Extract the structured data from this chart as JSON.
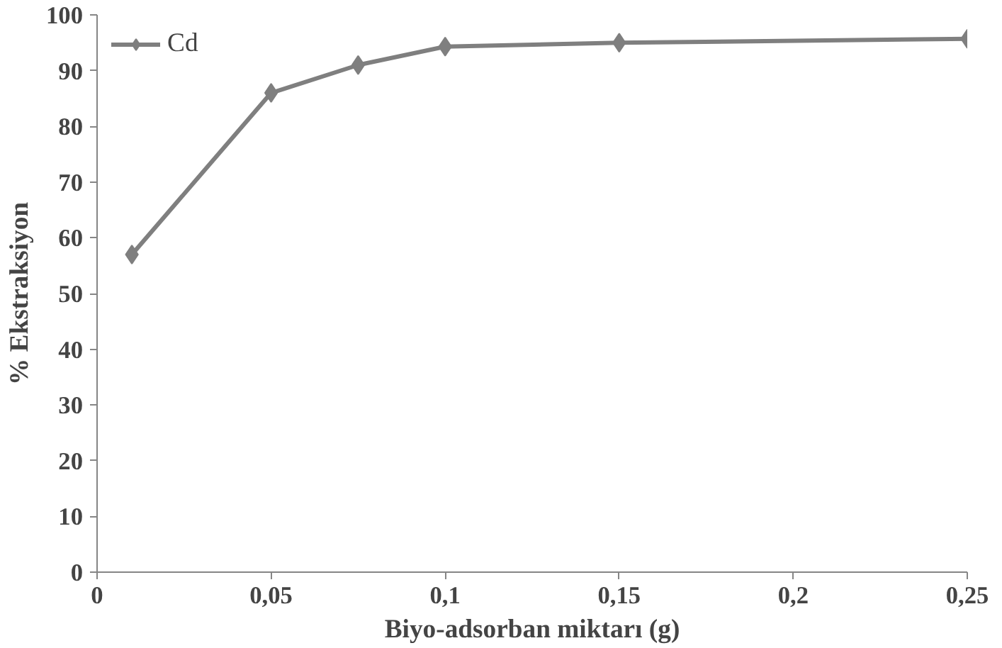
{
  "chart_data": {
    "type": "line",
    "xlabel": "Biyo-adsorban miktarı (g)",
    "ylabel": "% Ekstraksiyon",
    "x": [
      0.01,
      0.05,
      0.075,
      0.1,
      0.15,
      0.25
    ],
    "series": [
      {
        "name": "Cd",
        "color": "#7f7f7f",
        "values": [
          57,
          86,
          91,
          94.3,
          95,
          95.7
        ]
      }
    ],
    "xlim": [
      0,
      0.25
    ],
    "ylim": [
      0,
      100
    ],
    "xticks": [
      0,
      {
        "value": 0.05,
        "label": "0,05"
      },
      {
        "value": 0.1,
        "label": "0,1"
      },
      {
        "value": 0.15,
        "label": "0,15"
      },
      {
        "value": 0.2,
        "label": "0,2"
      },
      {
        "value": 0.25,
        "label": "0,25"
      }
    ],
    "yticks": [
      0,
      10,
      20,
      30,
      40,
      50,
      60,
      70,
      80,
      90,
      100
    ],
    "grid": false,
    "legend": "top left",
    "marker": "diamond",
    "line_style": "solid"
  }
}
